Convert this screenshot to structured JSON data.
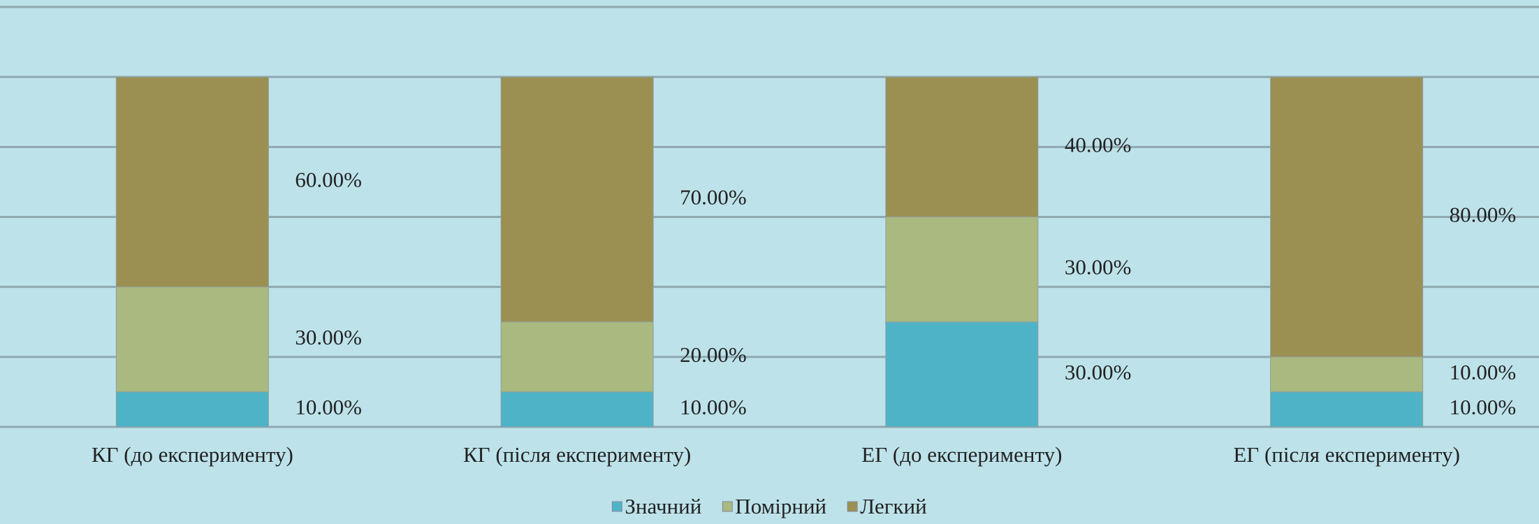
{
  "chart_data": {
    "type": "stacked_bar",
    "categories": [
      "КГ (до експерименту)",
      "КГ (після експерименту)",
      "ЕГ (до експерименту)",
      "ЕГ (після експерименту)"
    ],
    "series": [
      {
        "name": "Значний",
        "color": "#4fb3c8",
        "values": [
          10,
          10,
          30,
          10
        ],
        "value_labels": [
          "10.00%",
          "10.00%",
          "30.00%",
          "10.00%"
        ]
      },
      {
        "name": "Помірний",
        "color": "#a9b97f",
        "values": [
          30,
          20,
          30,
          10
        ],
        "value_labels": [
          "30.00%",
          "20.00%",
          "30.00%",
          "10.00%"
        ]
      },
      {
        "name": "Легкий",
        "color": "#9b8f52",
        "values": [
          60,
          70,
          40,
          80
        ],
        "value_labels": [
          "60.00%",
          "70.00%",
          "40.00%",
          "80.00%"
        ]
      }
    ],
    "ylim": [
      0,
      120
    ],
    "yticks": [
      0,
      20,
      40,
      60,
      80,
      100,
      120
    ],
    "grid": true,
    "legend": "bottom"
  }
}
